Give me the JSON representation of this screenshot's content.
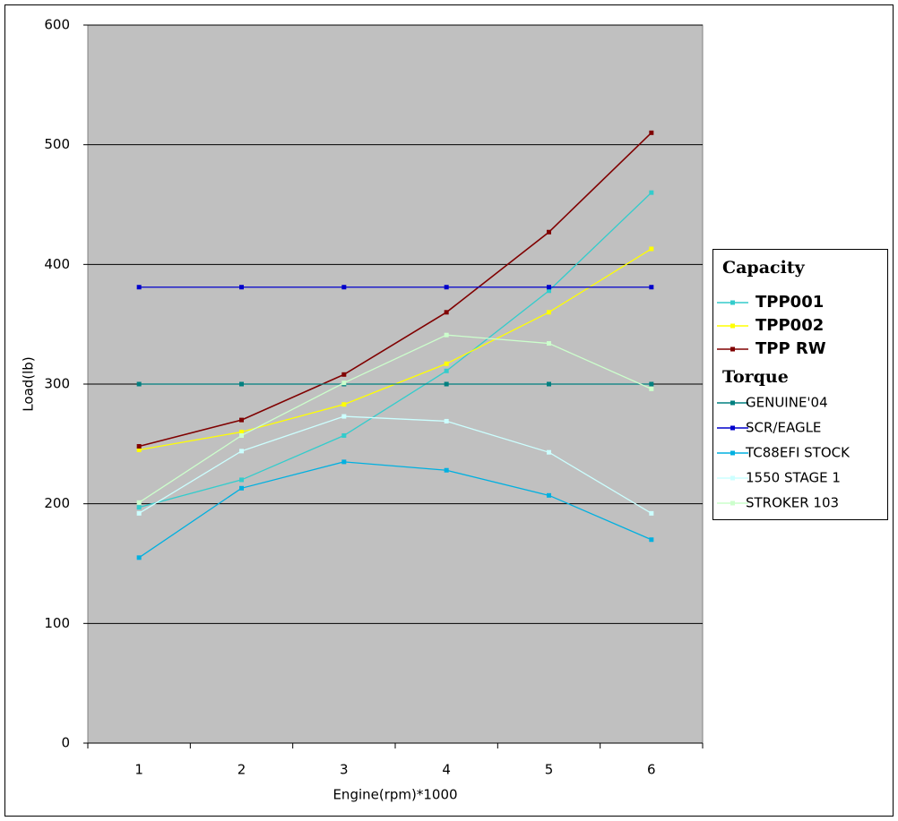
{
  "chart_data": {
    "type": "line",
    "x_label": "Engine(rpm)*1000",
    "y_label": "Load(lb)",
    "categories": [
      1,
      2,
      3,
      4,
      5,
      6
    ],
    "ylim": [
      0,
      600
    ],
    "yticks": [
      0,
      100,
      200,
      300,
      400,
      500,
      600
    ],
    "grid": true,
    "legend_position": "right",
    "series": [
      {
        "name": "TPP001",
        "group": "Capacity",
        "color": "#33CCCC",
        "values": [
          197,
          220,
          257,
          311,
          378,
          460
        ]
      },
      {
        "name": "TPP002",
        "group": "Capacity",
        "color": "#FFFF00",
        "values": [
          245,
          260,
          283,
          317,
          360,
          413
        ]
      },
      {
        "name": "TPP RW",
        "group": "Capacity",
        "color": "#800000",
        "values": [
          248,
          270,
          308,
          360,
          427,
          510
        ]
      },
      {
        "name": "GENUINE'04",
        "group": "Torque",
        "color": "#008080",
        "values": [
          300,
          300,
          300,
          300,
          300,
          300
        ]
      },
      {
        "name": "SCR/EAGLE",
        "group": "Torque",
        "color": "#0000CC",
        "values": [
          381,
          381,
          381,
          381,
          381,
          381
        ]
      },
      {
        "name": "TC88EFI STOCK",
        "group": "Torque",
        "color": "#00B0E0",
        "values": [
          155,
          213,
          235,
          228,
          207,
          170
        ]
      },
      {
        "name": "1550 STAGE 1",
        "group": "Torque",
        "color": "#CCFFFF",
        "values": [
          192,
          244,
          273,
          269,
          243,
          192
        ]
      },
      {
        "name": "STROKER 103",
        "group": "Torque",
        "color": "#CCFFCC",
        "values": [
          201,
          257,
          301,
          341,
          334,
          296
        ]
      }
    ]
  }
}
